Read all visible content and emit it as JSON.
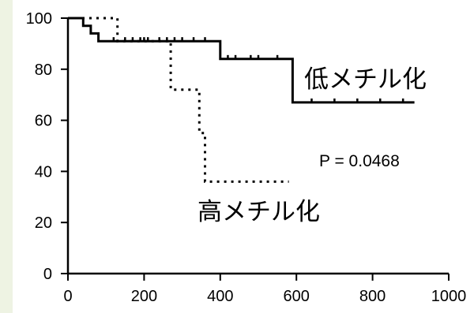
{
  "chart_data": {
    "type": "line",
    "step": true,
    "xlim": [
      0,
      1000
    ],
    "ylim": [
      0,
      100
    ],
    "xticks": [
      0,
      200,
      400,
      600,
      800,
      1000
    ],
    "yticks": [
      0,
      20,
      40,
      60,
      80,
      100
    ],
    "grid": false,
    "annotation": "P = 0.0468",
    "series": [
      {
        "name": "低メチル化",
        "style": "solid",
        "color": "#000000",
        "points": [
          [
            0,
            100
          ],
          [
            40,
            100
          ],
          [
            40,
            97
          ],
          [
            60,
            97
          ],
          [
            60,
            94
          ],
          [
            80,
            94
          ],
          [
            80,
            91
          ],
          [
            400,
            91
          ],
          [
            400,
            84
          ],
          [
            590,
            84
          ],
          [
            590,
            67
          ],
          [
            910,
            67
          ]
        ],
        "censored": [
          [
            120,
            91
          ],
          [
            150,
            91
          ],
          [
            170,
            91
          ],
          [
            190,
            91
          ],
          [
            200,
            91
          ],
          [
            210,
            91
          ],
          [
            240,
            91
          ],
          [
            260,
            91
          ],
          [
            280,
            91
          ],
          [
            300,
            91
          ],
          [
            330,
            91
          ],
          [
            360,
            91
          ],
          [
            420,
            84
          ],
          [
            440,
            84
          ],
          [
            480,
            84
          ],
          [
            500,
            84
          ],
          [
            550,
            84
          ],
          [
            640,
            67
          ],
          [
            700,
            67
          ],
          [
            760,
            67
          ],
          [
            820,
            67
          ],
          [
            880,
            67
          ]
        ]
      },
      {
        "name": "高メチル化",
        "style": "dotted",
        "color": "#000000",
        "points": [
          [
            0,
            100
          ],
          [
            130,
            100
          ],
          [
            130,
            91
          ],
          [
            270,
            91
          ],
          [
            270,
            72
          ],
          [
            345,
            72
          ],
          [
            345,
            55
          ],
          [
            360,
            55
          ],
          [
            360,
            36
          ],
          [
            580,
            36
          ]
        ],
        "censored": []
      }
    ]
  }
}
